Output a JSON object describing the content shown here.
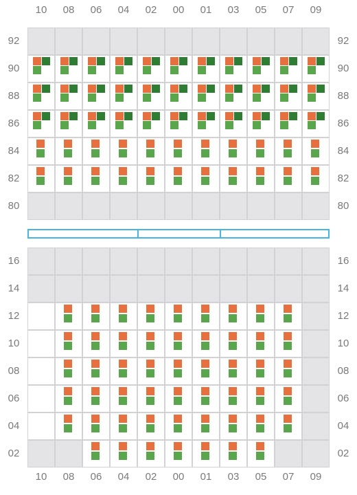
{
  "colors": {
    "orange": "#e8703e",
    "light_green": "#5aa64c",
    "dark_green": "#2e7d32",
    "unavailable": "#e4e4e6",
    "divider": "#46b6e0"
  },
  "column_labels": [
    "10",
    "08",
    "06",
    "04",
    "02",
    "00",
    "01",
    "03",
    "05",
    "07",
    "09"
  ],
  "upper_block": {
    "rows": [
      {
        "label": "92",
        "cells": [
          "na",
          "na",
          "na",
          "na",
          "na",
          "na",
          "na",
          "na",
          "na",
          "na",
          "na"
        ]
      },
      {
        "label": "90",
        "cells": [
          "full",
          "full",
          "full",
          "full",
          "full",
          "full",
          "full",
          "full",
          "full",
          "full",
          "full"
        ]
      },
      {
        "label": "88",
        "cells": [
          "full",
          "full",
          "full",
          "full",
          "full",
          "full",
          "full",
          "full",
          "full",
          "full",
          "full"
        ]
      },
      {
        "label": "86",
        "cells": [
          "full",
          "full",
          "full",
          "full",
          "full",
          "full",
          "full",
          "full",
          "full",
          "full",
          "full"
        ]
      },
      {
        "label": "84",
        "cells": [
          "stack",
          "stack",
          "stack",
          "stack",
          "stack",
          "stack",
          "stack",
          "stack",
          "stack",
          "stack",
          "stack"
        ]
      },
      {
        "label": "82",
        "cells": [
          "stack",
          "stack",
          "stack",
          "stack",
          "stack",
          "stack",
          "stack",
          "stack",
          "stack",
          "stack",
          "stack"
        ]
      },
      {
        "label": "80",
        "cells": [
          "na",
          "na",
          "na",
          "na",
          "na",
          "na",
          "na",
          "na",
          "na",
          "na",
          "na"
        ]
      }
    ]
  },
  "lower_block": {
    "rows": [
      {
        "label": "16",
        "cells": [
          "na",
          "na",
          "na",
          "na",
          "na",
          "na",
          "na",
          "na",
          "na",
          "na",
          "na"
        ]
      },
      {
        "label": "14",
        "cells": [
          "na",
          "na",
          "na",
          "na",
          "na",
          "na",
          "na",
          "na",
          "na",
          "na",
          "na"
        ]
      },
      {
        "label": "12",
        "cells": [
          "empty",
          "stack",
          "stack",
          "stack",
          "stack",
          "stack",
          "stack",
          "stack",
          "stack",
          "stack",
          "na"
        ]
      },
      {
        "label": "10",
        "cells": [
          "empty",
          "stack",
          "stack",
          "stack",
          "stack",
          "stack",
          "stack",
          "stack",
          "stack",
          "stack",
          "na"
        ]
      },
      {
        "label": "08",
        "cells": [
          "empty",
          "stack",
          "stack",
          "stack",
          "stack",
          "stack",
          "stack",
          "stack",
          "stack",
          "stack",
          "na"
        ]
      },
      {
        "label": "06",
        "cells": [
          "empty",
          "stack",
          "stack",
          "stack",
          "stack",
          "stack",
          "stack",
          "stack",
          "stack",
          "stack",
          "na"
        ]
      },
      {
        "label": "04",
        "cells": [
          "empty",
          "stack",
          "stack",
          "stack",
          "stack",
          "stack",
          "stack",
          "stack",
          "stack",
          "stack",
          "na"
        ]
      },
      {
        "label": "02",
        "cells": [
          "na",
          "na",
          "stack",
          "stack",
          "stack",
          "stack",
          "stack",
          "stack",
          "stack",
          "na",
          "na"
        ]
      }
    ]
  }
}
